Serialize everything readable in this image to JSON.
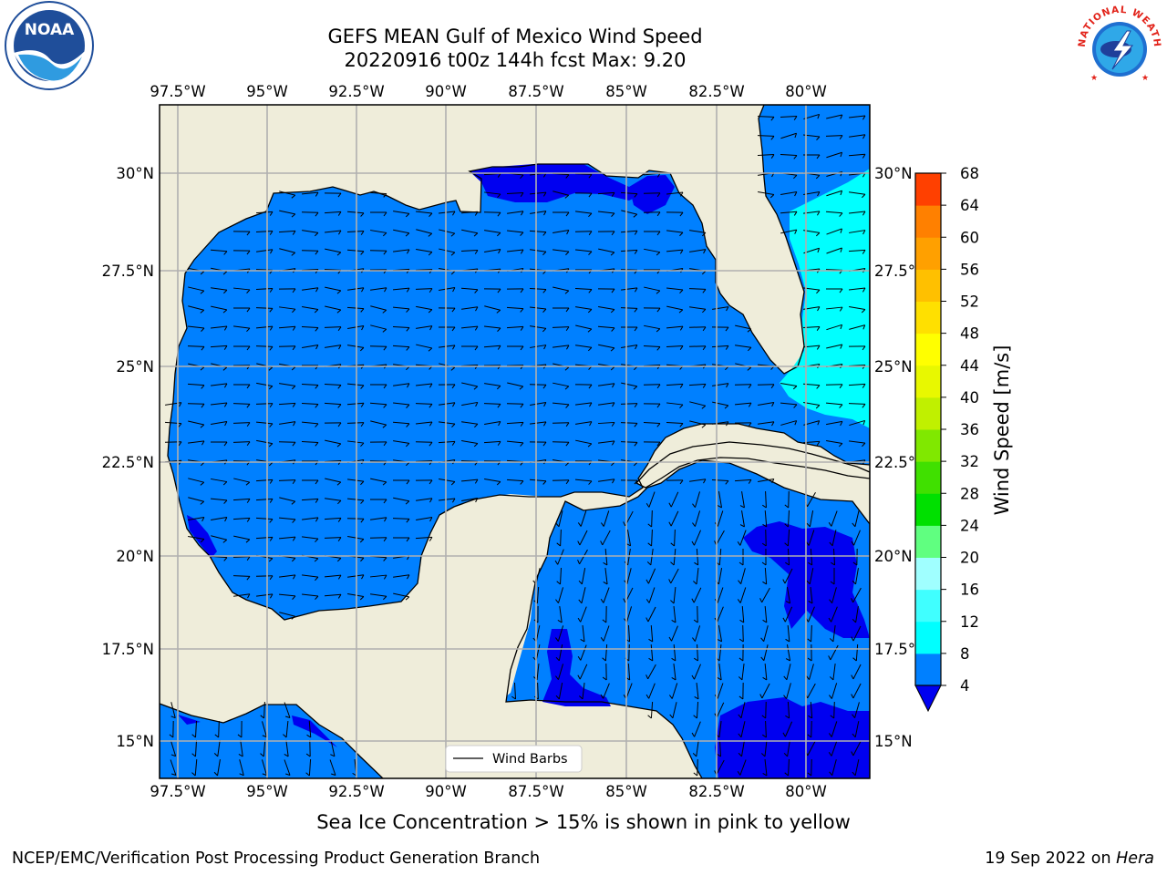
{
  "title": {
    "line1": "GEFS MEAN Gulf of Mexico Wind Speed",
    "line2": "20220916 t00z 144h fcst   Max: 9.20"
  },
  "map": {
    "lon_ticks": [
      "97.5°W",
      "95°W",
      "92.5°W",
      "90°W",
      "87.5°W",
      "85°W",
      "82.5°W",
      "80°W"
    ],
    "lat_ticks": [
      "30°N",
      "27.5°N",
      "25°N",
      "22.5°N",
      "20°N",
      "17.5°N",
      "15°N"
    ],
    "legend_label": "Wind Barbs",
    "colors": {
      "land": "#efedda",
      "wind_4_8": "#0080ff",
      "wind_lt_4": "#0000f0",
      "wind_8_12": "#00ffff",
      "grid": "#b0b0b0"
    }
  },
  "colorbar": {
    "label": "Wind Speed [m/s]",
    "ticks": [
      "4",
      "8",
      "12",
      "16",
      "20",
      "24",
      "28",
      "32",
      "36",
      "40",
      "44",
      "48",
      "52",
      "56",
      "60",
      "64",
      "68"
    ],
    "colors": [
      "#0080ff",
      "#00ffff",
      "#40ffff",
      "#a0ffff",
      "#60ff80",
      "#00e000",
      "#40e000",
      "#80e800",
      "#c0f000",
      "#e8f800",
      "#ffff00",
      "#ffe000",
      "#ffc000",
      "#ffa000",
      "#ff8000",
      "#ff4000",
      "#ff0000"
    ],
    "under_color": "#0000f0"
  },
  "footnote": "Sea Ice Concentration > 15% is shown in pink to yellow",
  "credit_left": "NCEP/EMC/Verification Post Processing Product Generation Branch",
  "credit_right_prefix": "19 Sep 2022 on ",
  "credit_right_host": "Hera",
  "logos": {
    "left": "NOAA",
    "right_arc": "NATIONAL WEATHER SERVICE"
  }
}
